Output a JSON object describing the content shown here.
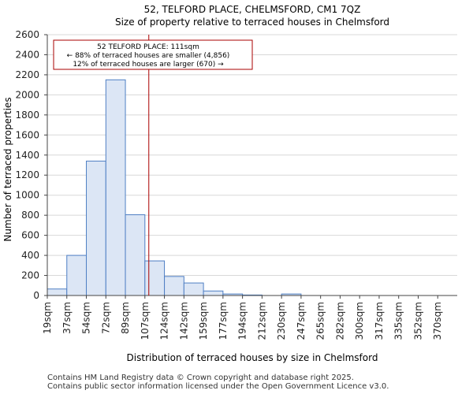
{
  "chart_data": {
    "type": "bar",
    "title": "52, TELFORD PLACE, CHELMSFORD, CM1 7QZ",
    "subtitle": "Size of property relative to terraced houses in Chelmsford",
    "xlabel": "Distribution of terraced houses by size in Chelmsford",
    "ylabel": "Number of terraced properties",
    "categories": [
      "19sqm",
      "37sqm",
      "54sqm",
      "72sqm",
      "89sqm",
      "107sqm",
      "124sqm",
      "142sqm",
      "159sqm",
      "177sqm",
      "194sqm",
      "212sqm",
      "230sqm",
      "247sqm",
      "265sqm",
      "282sqm",
      "300sqm",
      "317sqm",
      "335sqm",
      "352sqm",
      "370sqm"
    ],
    "values": [
      65,
      400,
      1340,
      2150,
      805,
      345,
      190,
      125,
      45,
      15,
      5,
      0,
      15,
      0,
      0,
      0,
      0,
      0,
      0,
      0,
      0
    ],
    "ylim": [
      0,
      2600
    ],
    "yticks": [
      0,
      200,
      400,
      600,
      800,
      1000,
      1200,
      1400,
      1600,
      1800,
      2000,
      2200,
      2400,
      2600
    ],
    "marker": {
      "value_sqm": 111,
      "position_in_bins": 5.2,
      "color": "#aa0000"
    },
    "annotation": {
      "lines": [
        "52 TELFORD PLACE: 111sqm",
        "← 88% of terraced houses are smaller (4,856)",
        "12% of terraced houses are larger (670) →"
      ]
    },
    "bar_fill": "#dce6f5",
    "bar_stroke": "#4f7fc4"
  },
  "footer": {
    "line1": "Contains HM Land Registry data © Crown copyright and database right 2025.",
    "line2": "Contains public sector information licensed under the Open Government Licence v3.0."
  }
}
